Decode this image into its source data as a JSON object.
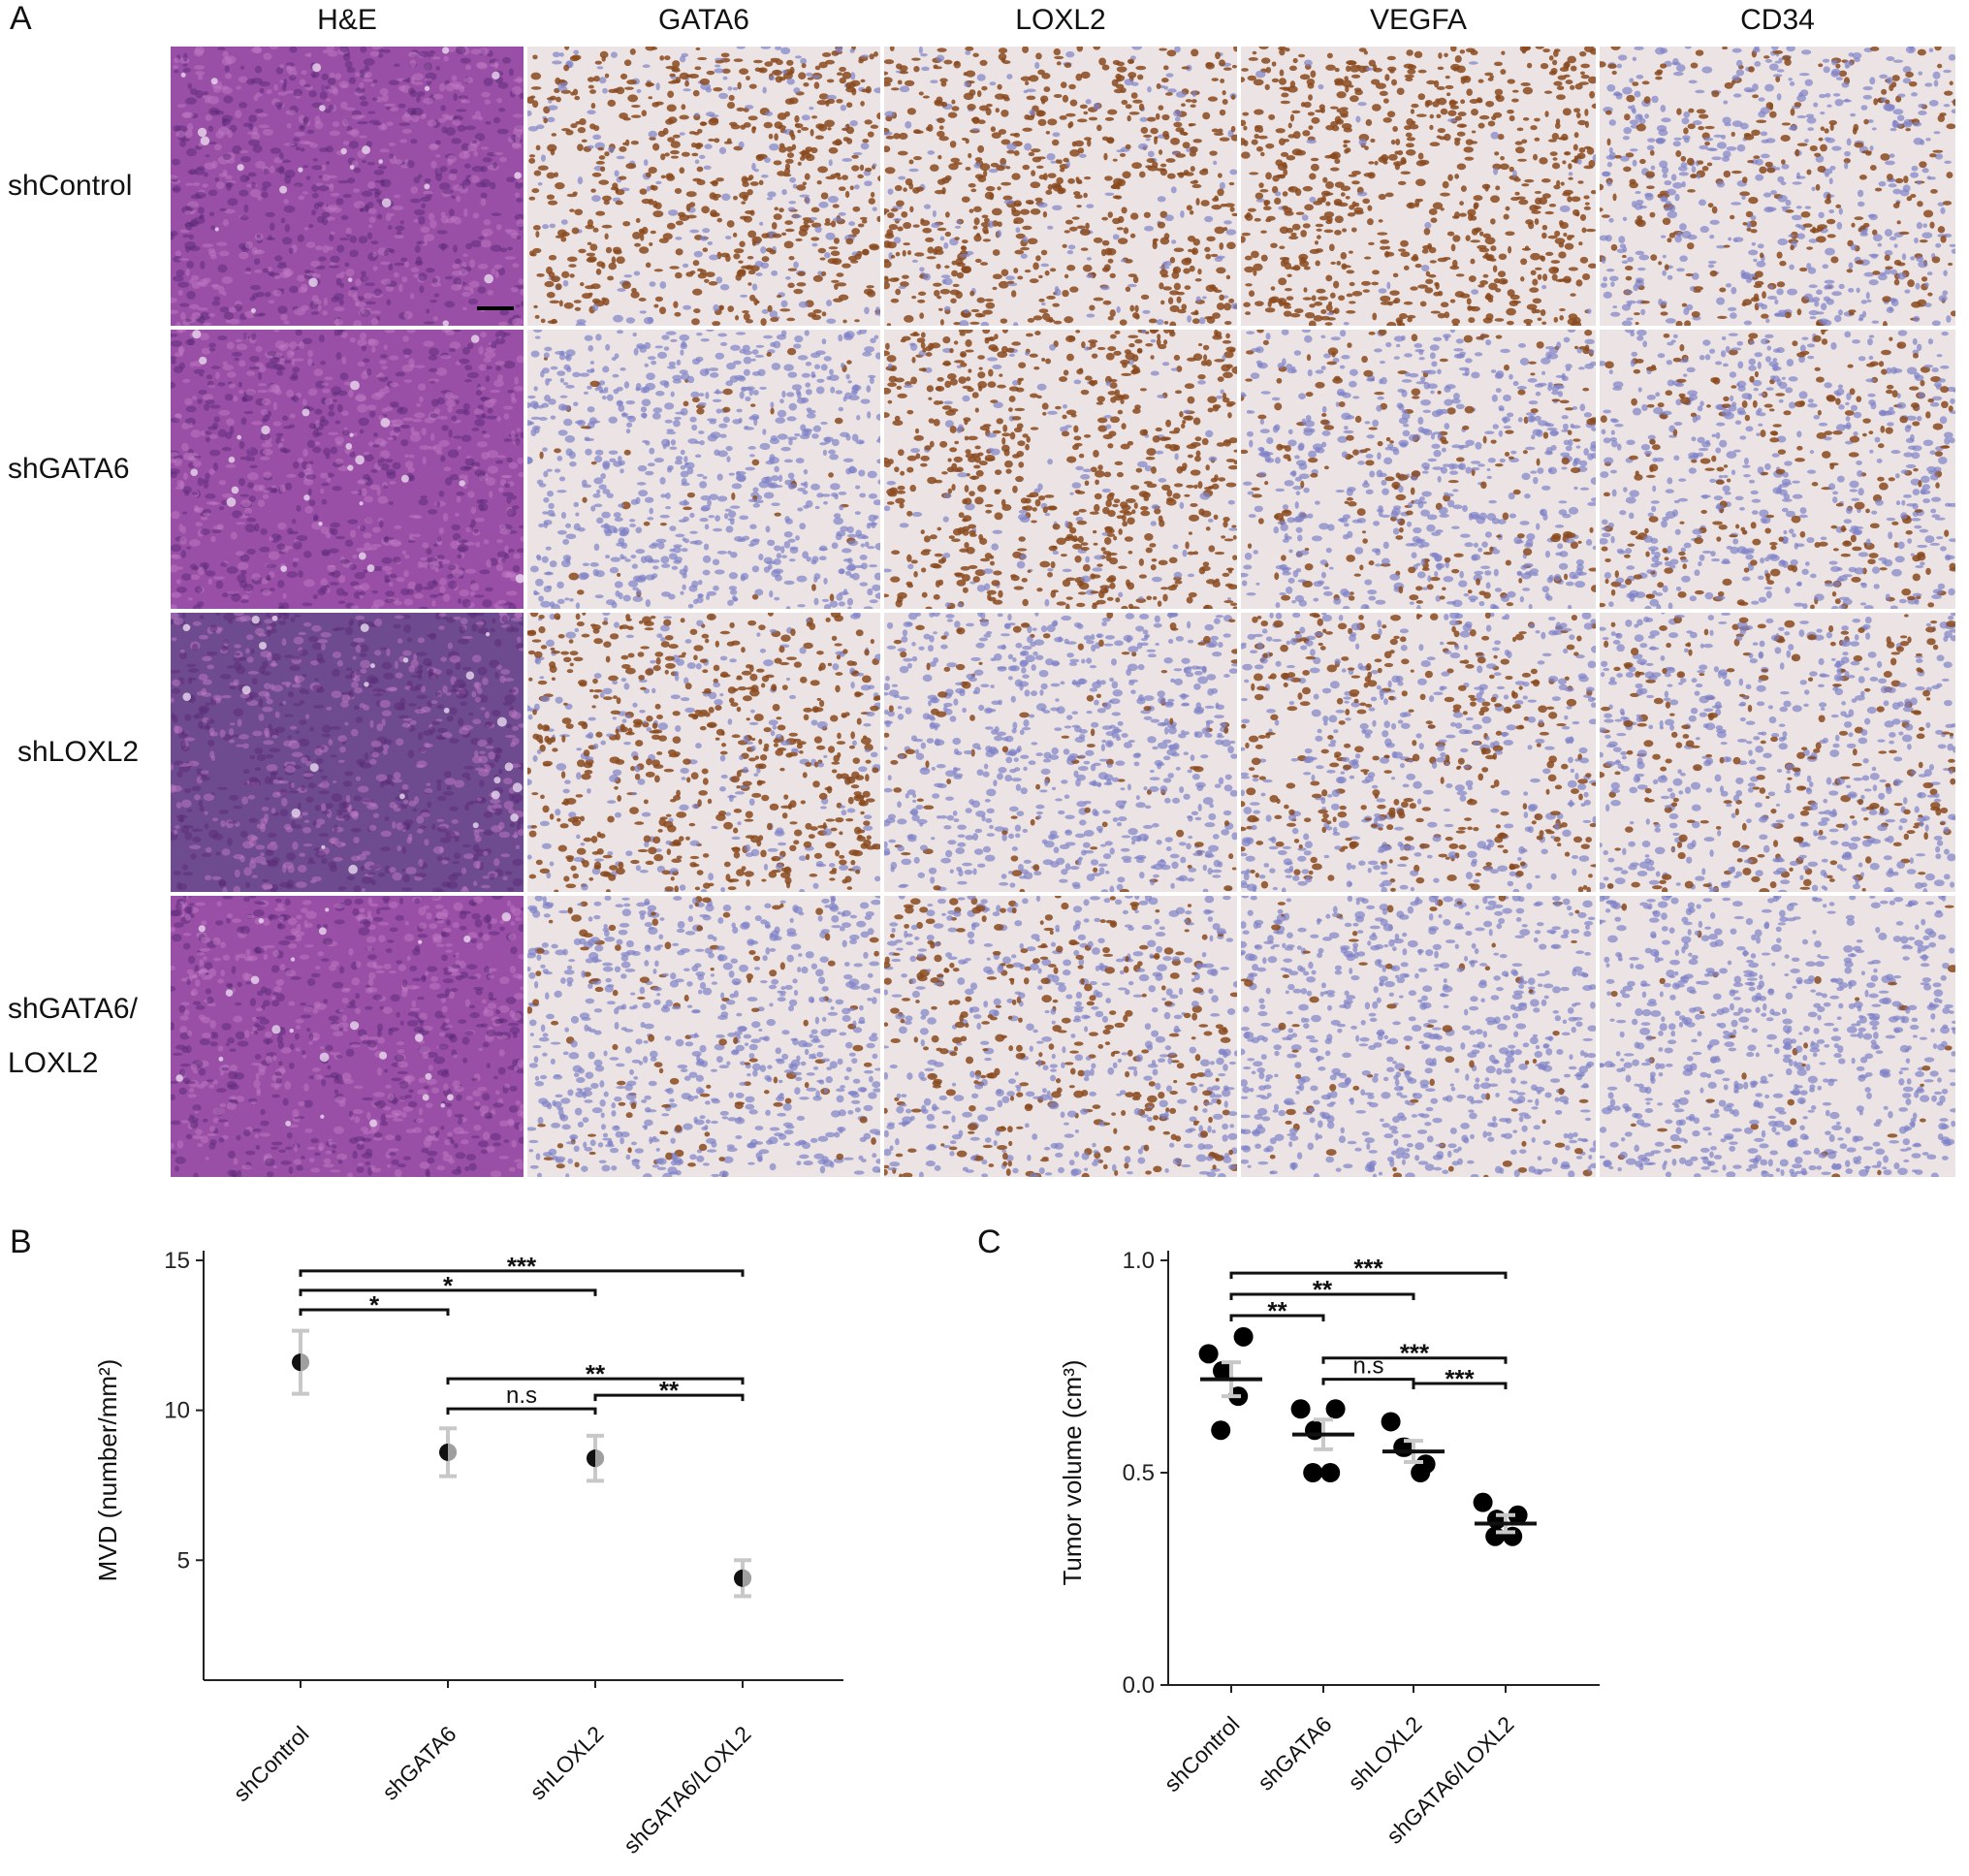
{
  "panel_a": {
    "letter": "A",
    "columns": [
      "H&E",
      "GATA6",
      "LOXL2",
      "VEGFA",
      "CD34"
    ],
    "rows": [
      {
        "lines": [
          "shControl"
        ]
      },
      {
        "lines": [
          "shGATA6"
        ]
      },
      {
        "lines": [
          "shLOXL2"
        ]
      },
      {
        "lines": [
          "shGATA6/",
          "LOXL2"
        ]
      }
    ],
    "stain_colors": {
      "hematoxylin_eosin": "#9a4fa6",
      "hematoxylin": "#7f82c8",
      "dab_brown": "#8a4a1e",
      "background_light": "#ece4e4"
    },
    "stain_levels": [
      [
        1.0,
        0.75,
        0.8,
        0.95,
        0.35
      ],
      [
        1.0,
        0.05,
        0.85,
        0.25,
        0.3
      ],
      [
        1.0,
        0.7,
        0.12,
        0.45,
        0.3
      ],
      [
        1.0,
        0.15,
        0.35,
        0.08,
        0.05
      ]
    ]
  },
  "chart_data": [
    {
      "panel_letter": "B",
      "type": "scatter",
      "ylabel": "MVD (number/mm²)",
      "categories": [
        "shControl",
        "shGATA6",
        "shLOXL2",
        "shGATA6/LOXL2"
      ],
      "ylim": [
        1,
        15
      ],
      "yticks": [
        5,
        10,
        15
      ],
      "means": [
        11.6,
        8.6,
        8.4,
        4.4
      ],
      "errors": [
        1.05,
        0.8,
        0.75,
        0.6
      ],
      "brackets": [
        {
          "from": 0,
          "to": 1,
          "label": "*",
          "y": 13.35
        },
        {
          "from": 0,
          "to": 2,
          "label": "*",
          "y": 14.0
        },
        {
          "from": 0,
          "to": 3,
          "label": "***",
          "y": 14.65
        },
        {
          "from": 1,
          "to": 2,
          "label": "n.s",
          "y": 10.05
        },
        {
          "from": 2,
          "to": 3,
          "label": "**",
          "y": 10.5
        },
        {
          "from": 1,
          "to": 3,
          "label": "**",
          "y": 11.05
        }
      ]
    },
    {
      "panel_letter": "C",
      "type": "scatter",
      "ylabel": "Tumor volume (cm³)",
      "categories": [
        "shControl",
        "shGATA6",
        "shLOXL2",
        "shGATA6/LOXL2"
      ],
      "ylim": [
        0.0,
        1.0
      ],
      "yticks": [
        "0.0",
        "0.5",
        "1.0"
      ],
      "points": [
        [
          0.78,
          0.74,
          0.82,
          0.68,
          0.6
        ],
        [
          0.65,
          0.6,
          0.65,
          0.5,
          0.5
        ],
        [
          0.62,
          0.56,
          0.52,
          0.5,
          0.56
        ],
        [
          0.43,
          0.39,
          0.4,
          0.35,
          0.35
        ]
      ],
      "means": [
        0.72,
        0.59,
        0.55,
        0.38
      ],
      "errors": [
        0.04,
        0.035,
        0.025,
        0.02
      ],
      "brackets": [
        {
          "from": 0,
          "to": 1,
          "label": "**",
          "y": 0.87
        },
        {
          "from": 0,
          "to": 2,
          "label": "**",
          "y": 0.92
        },
        {
          "from": 0,
          "to": 3,
          "label": "***",
          "y": 0.97
        },
        {
          "from": 1,
          "to": 2,
          "label": "n.s",
          "y": 0.72
        },
        {
          "from": 2,
          "to": 3,
          "label": "***",
          "y": 0.71
        },
        {
          "from": 1,
          "to": 3,
          "label": "***",
          "y": 0.77
        }
      ]
    }
  ]
}
